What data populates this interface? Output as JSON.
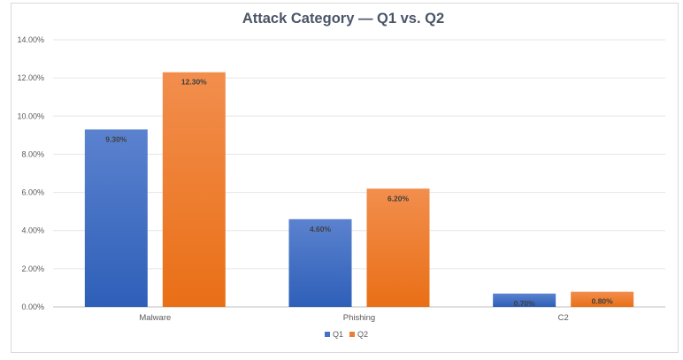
{
  "chart_data": {
    "type": "bar",
    "title": "Attack Category — Q1 vs. Q2",
    "xlabel": "",
    "ylabel": "",
    "categories": [
      "Malware",
      "Phishing",
      "C2"
    ],
    "series": [
      {
        "name": "Q1",
        "values": [
          9.3,
          4.6,
          0.7
        ],
        "labels": [
          "9.30%",
          "4.60%",
          "0.70%"
        ],
        "color": "#4472c4"
      },
      {
        "name": "Q2",
        "values": [
          12.3,
          6.2,
          0.8
        ],
        "labels": [
          "12.30%",
          "6.20%",
          "0.80%"
        ],
        "color": "#ed7d31"
      }
    ],
    "ylim": [
      0,
      14
    ],
    "yticks": [
      0,
      2,
      4,
      6,
      8,
      10,
      12,
      14
    ],
    "ytick_labels": [
      "0.00%",
      "2.00%",
      "4.00%",
      "6.00%",
      "8.00%",
      "10.00%",
      "12.00%",
      "14.00%"
    ],
    "grid": true,
    "legend_position": "bottom"
  }
}
